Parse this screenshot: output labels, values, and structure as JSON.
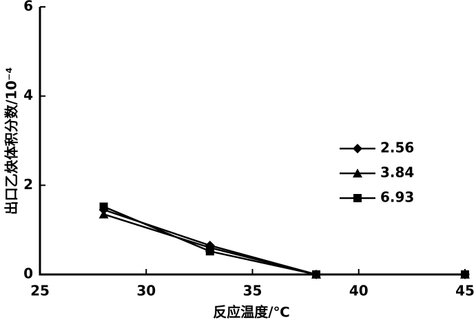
{
  "chart_data": {
    "type": "line",
    "x_label": "反应温度/℃",
    "y_label": "出口乙炔体积分数/10⁻⁴",
    "x": [
      28,
      33,
      38,
      45
    ],
    "series": [
      {
        "name": "2.56",
        "color": "#000000",
        "marker": "diamond",
        "values": [
          1.45,
          0.65,
          0,
          0
        ]
      },
      {
        "name": "3.84",
        "color": "#000000",
        "marker": "triangle",
        "values": [
          1.35,
          0.6,
          0,
          0
        ]
      },
      {
        "name": "6.93",
        "color": "#000000",
        "marker": "square",
        "values": [
          1.52,
          0.52,
          0,
          0
        ]
      }
    ],
    "xlim": [
      25,
      45
    ],
    "xticks": [
      25,
      30,
      35,
      40,
      45
    ],
    "ylim": [
      0,
      6
    ],
    "yticks": [
      0,
      2,
      4,
      6
    ],
    "legend": "right"
  }
}
